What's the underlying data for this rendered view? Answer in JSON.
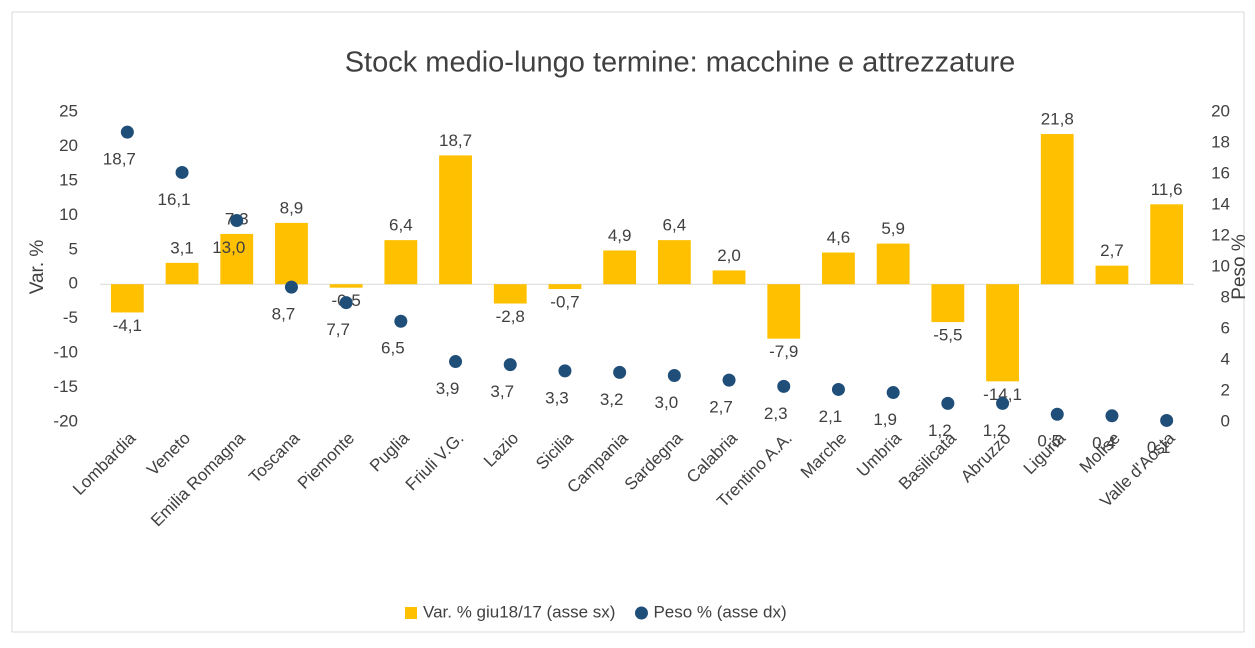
{
  "chart_data": {
    "type": "bar",
    "title": "Stock medio-lungo termine: macchine e attrezzature",
    "y_label": "Var. %",
    "y2_label": "Peso %",
    "categories": [
      "Lombardia",
      "Veneto",
      "Emilia Romagna",
      "Toscana",
      "Piemonte",
      "Puglia",
      "Friuli V.G.",
      "Lazio",
      "Sicilia",
      "Campania",
      "Sardegna",
      "Calabria",
      "Trentino A.A.",
      "Marche",
      "Umbria",
      "Basilicata",
      "Abruzzo",
      "Liguria",
      "Molise",
      "Valle d'Aosta"
    ],
    "series": [
      {
        "name": "Var. % giu18/17 (asse sx)",
        "type": "bar",
        "color": "#ffc000",
        "values": [
          -4.1,
          3.1,
          7.3,
          8.9,
          -0.5,
          6.4,
          18.7,
          -2.8,
          -0.7,
          4.9,
          6.4,
          2.0,
          -7.9,
          4.6,
          5.9,
          -5.5,
          -14.1,
          21.8,
          2.7,
          11.6
        ],
        "value_labels": [
          "-4,1",
          "3,1",
          "7,3",
          "8,9",
          "-0,5",
          "6,4",
          "18,7",
          "-2,8",
          "-0,7",
          "4,9",
          "6,4",
          "2,0",
          "-7,9",
          "4,6",
          "5,9",
          "-5,5",
          "-14,1",
          "21,8",
          "2,7",
          "11,6"
        ]
      },
      {
        "name": "Peso % (asse dx)",
        "type": "scatter",
        "axis": "y2",
        "color": "#1f4e79",
        "values": [
          18.7,
          16.1,
          13.0,
          8.7,
          7.7,
          6.5,
          3.9,
          3.7,
          3.3,
          3.2,
          3.0,
          2.7,
          2.3,
          2.1,
          1.9,
          1.2,
          1.2,
          0.5,
          0.4,
          0.1
        ],
        "value_labels": [
          "18,7",
          "16,1",
          "13,0",
          "8,7",
          "7,7",
          "6,5",
          "3,9",
          "3,7",
          "3,3",
          "3,2",
          "3,0",
          "2,7",
          "2,3",
          "2,1",
          "1,9",
          "1,2",
          "1,2",
          "0,5",
          "0,4",
          "0,1"
        ]
      }
    ],
    "ylim": [
      -20,
      25
    ],
    "yticks": [
      -20,
      -15,
      -10,
      -5,
      0,
      5,
      10,
      15,
      20,
      25
    ],
    "y2lim": [
      0,
      20
    ],
    "y2ticks": [
      0,
      2,
      4,
      6,
      8,
      10,
      12,
      14,
      16,
      18,
      20
    ],
    "legend": "bottom"
  }
}
